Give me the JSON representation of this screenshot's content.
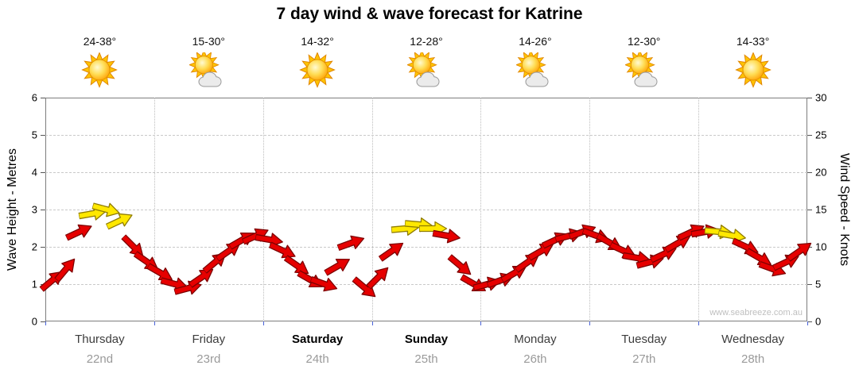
{
  "title": "7 day wind & wave forecast for Katrine",
  "chart_data": {
    "type": "scatter",
    "subtype": "wind-arrow-forecast",
    "title": "7 day wind & wave forecast for Katrine",
    "left_axis": {
      "label": "Wave Height - Metres",
      "min": 0,
      "max": 6,
      "ticks": [
        0,
        1,
        2,
        3,
        4,
        5,
        6
      ]
    },
    "right_axis": {
      "label": "Wind Speed - Knots",
      "min": 0,
      "max": 30,
      "ticks": [
        0,
        5,
        10,
        15,
        20,
        25,
        30
      ]
    },
    "watermark": "www.seabreeze.com.au",
    "samples_per_day": 8,
    "arrow_colors": {
      "normal": "#e60000",
      "strong": "#ffe800"
    },
    "grid": true,
    "days": [
      {
        "name": "Thursday",
        "date": "22nd",
        "temp": "24-38°",
        "icon": "sun",
        "weekend": false
      },
      {
        "name": "Friday",
        "date": "23rd",
        "temp": "15-30°",
        "icon": "sun-cloud",
        "weekend": false
      },
      {
        "name": "Saturday",
        "date": "24th",
        "temp": "14-32°",
        "icon": "sun",
        "weekend": true
      },
      {
        "name": "Sunday",
        "date": "25th",
        "temp": "12-28°",
        "icon": "sun-cloud",
        "weekend": true
      },
      {
        "name": "Monday",
        "date": "26th",
        "temp": "14-26°",
        "icon": "sun-cloud",
        "weekend": false
      },
      {
        "name": "Tuesday",
        "date": "27th",
        "temp": "12-30°",
        "icon": "sun-cloud",
        "weekend": false
      },
      {
        "name": "Wednesday",
        "date": "28th",
        "temp": "14-33°",
        "icon": "sun",
        "weekend": false
      }
    ],
    "arrows": [
      {
        "kt": 5.5,
        "dir": -40,
        "c": "r"
      },
      {
        "kt": 7,
        "dir": -50,
        "c": "r"
      },
      {
        "kt": 12,
        "dir": -25,
        "c": "r"
      },
      {
        "kt": 14.5,
        "dir": -10,
        "c": "y"
      },
      {
        "kt": 15,
        "dir": 15,
        "c": "y"
      },
      {
        "kt": 13.5,
        "dir": -25,
        "c": "y"
      },
      {
        "kt": 10,
        "dir": 45,
        "c": "r"
      },
      {
        "kt": 8,
        "dir": 35,
        "c": "r"
      },
      {
        "kt": 6.5,
        "dir": 30,
        "c": "r"
      },
      {
        "kt": 5,
        "dir": 15,
        "c": "r"
      },
      {
        "kt": 4.5,
        "dir": -15,
        "c": "r"
      },
      {
        "kt": 6,
        "dir": -35,
        "c": "r"
      },
      {
        "kt": 8,
        "dir": -40,
        "c": "r"
      },
      {
        "kt": 9.5,
        "dir": -35,
        "c": "r"
      },
      {
        "kt": 11,
        "dir": -30,
        "c": "r"
      },
      {
        "kt": 11.5,
        "dir": -25,
        "c": "r"
      },
      {
        "kt": 11,
        "dir": 10,
        "c": "r"
      },
      {
        "kt": 9.5,
        "dir": 25,
        "c": "r"
      },
      {
        "kt": 7.5,
        "dir": 35,
        "c": "r"
      },
      {
        "kt": 5.5,
        "dir": 30,
        "c": "r"
      },
      {
        "kt": 5,
        "dir": 20,
        "c": "r"
      },
      {
        "kt": 7.5,
        "dir": -30,
        "c": "r"
      },
      {
        "kt": 10.5,
        "dir": -20,
        "c": "r"
      },
      {
        "kt": 4.5,
        "dir": 40,
        "c": "r"
      },
      {
        "kt": 6,
        "dir": -45,
        "c": "r"
      },
      {
        "kt": 9.5,
        "dir": -35,
        "c": "r"
      },
      {
        "kt": 12.5,
        "dir": -5,
        "c": "y"
      },
      {
        "kt": 13,
        "dir": 5,
        "c": "y"
      },
      {
        "kt": 12.5,
        "dir": 0,
        "c": "y"
      },
      {
        "kt": 11.5,
        "dir": 10,
        "c": "r"
      },
      {
        "kt": 7.5,
        "dir": 40,
        "c": "r"
      },
      {
        "kt": 5,
        "dir": 30,
        "c": "r"
      },
      {
        "kt": 5,
        "dir": -15,
        "c": "r"
      },
      {
        "kt": 5.5,
        "dir": -20,
        "c": "r"
      },
      {
        "kt": 6.5,
        "dir": -30,
        "c": "r"
      },
      {
        "kt": 8,
        "dir": -35,
        "c": "r"
      },
      {
        "kt": 9.5,
        "dir": -30,
        "c": "r"
      },
      {
        "kt": 11,
        "dir": -25,
        "c": "r"
      },
      {
        "kt": 11.5,
        "dir": -15,
        "c": "r"
      },
      {
        "kt": 12,
        "dir": -20,
        "c": "r"
      },
      {
        "kt": 11.5,
        "dir": 20,
        "c": "r"
      },
      {
        "kt": 10.5,
        "dir": 30,
        "c": "r"
      },
      {
        "kt": 9.5,
        "dir": 25,
        "c": "r"
      },
      {
        "kt": 8.5,
        "dir": 10,
        "c": "r"
      },
      {
        "kt": 8,
        "dir": -15,
        "c": "r"
      },
      {
        "kt": 9,
        "dir": -25,
        "c": "r"
      },
      {
        "kt": 10.5,
        "dir": -30,
        "c": "r"
      },
      {
        "kt": 12,
        "dir": -25,
        "c": "r"
      },
      {
        "kt": 12,
        "dir": -10,
        "c": "r"
      },
      {
        "kt": 12,
        "dir": 5,
        "c": "y"
      },
      {
        "kt": 11.5,
        "dir": 10,
        "c": "y"
      },
      {
        "kt": 10,
        "dir": 25,
        "c": "r"
      },
      {
        "kt": 8.5,
        "dir": 30,
        "c": "r"
      },
      {
        "kt": 7,
        "dir": 20,
        "c": "r"
      },
      {
        "kt": 8,
        "dir": -25,
        "c": "r"
      },
      {
        "kt": 9.5,
        "dir": -35,
        "c": "r"
      }
    ]
  }
}
